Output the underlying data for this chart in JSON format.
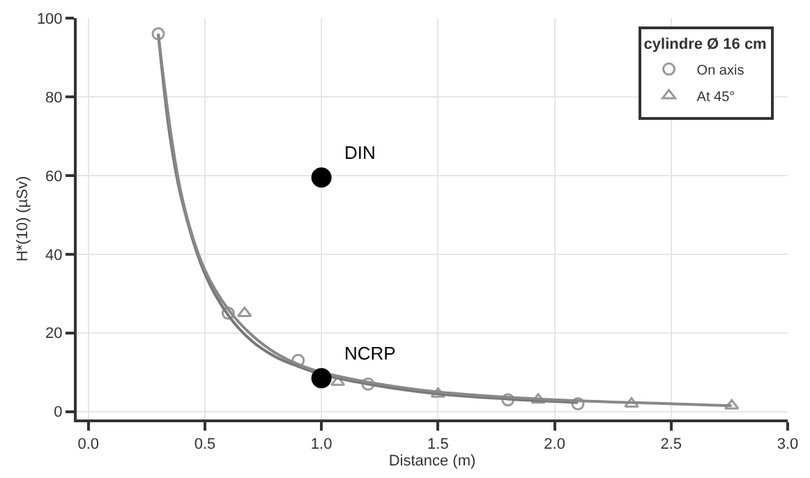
{
  "chart_data": {
    "type": "scatter",
    "xlabel": "Distance (m)",
    "ylabel": "H*(10) (µSv)",
    "legend_title": "cylindre Ø 16 cm",
    "xlim": [
      -0.05,
      3.0
    ],
    "ylim": [
      -2,
      100
    ],
    "xticks": [
      {
        "value": 0,
        "label": "0.0"
      },
      0.5,
      {
        "value": 1,
        "label": "1.0"
      },
      1.5,
      {
        "value": 2,
        "label": "2.0"
      },
      2.5,
      {
        "value": 3,
        "label": "3.0"
      }
    ],
    "yticks": [
      0,
      20,
      40,
      60,
      80,
      100
    ],
    "grid": true,
    "legend": "top right",
    "series": [
      {
        "name": "On axis",
        "marker": "circle",
        "color": "#999999",
        "x": [
          0.3,
          0.6,
          0.9,
          1.2,
          1.8,
          2.1
        ],
        "values": [
          96,
          25,
          13,
          7,
          3,
          2
        ]
      },
      {
        "name": "At 45°",
        "marker": "triangle",
        "color": "#999999",
        "x": [
          0.67,
          1.07,
          1.5,
          1.93,
          2.33,
          2.76
        ],
        "values": [
          25,
          7.5,
          4.5,
          3,
          2,
          1.5
        ]
      },
      {
        "type": "line",
        "marker": "none",
        "color": "#777777",
        "x": [
          0.3,
          0.35,
          0.4,
          0.5,
          0.6,
          0.7,
          0.8,
          0.9,
          1.0,
          1.2,
          1.5,
          1.8,
          2.1
        ],
        "values": [
          96,
          70,
          54,
          35,
          24.5,
          18,
          14,
          11.5,
          9.5,
          7,
          4.5,
          3.2,
          2.3
        ]
      },
      {
        "type": "line",
        "marker": "none",
        "color": "#888888",
        "x": [
          0.3,
          0.4,
          0.5,
          0.6,
          0.7,
          0.8,
          0.9,
          1.0,
          1.2,
          1.5,
          2.0,
          2.5,
          2.76
        ],
        "values": [
          96,
          55,
          36,
          26,
          19.5,
          15,
          12,
          10,
          7.5,
          5,
          3,
          2,
          1.5
        ]
      },
      {
        "marker": "circle",
        "color": "#000000",
        "x": [
          1.0,
          1.0
        ],
        "values": [
          59.5,
          8.5
        ]
      }
    ],
    "annotations": [
      {
        "text": "DIN",
        "x": 1.0,
        "y": 59.5
      },
      {
        "text": "NCRP",
        "x": 1.0,
        "y": 8.5
      }
    ]
  }
}
